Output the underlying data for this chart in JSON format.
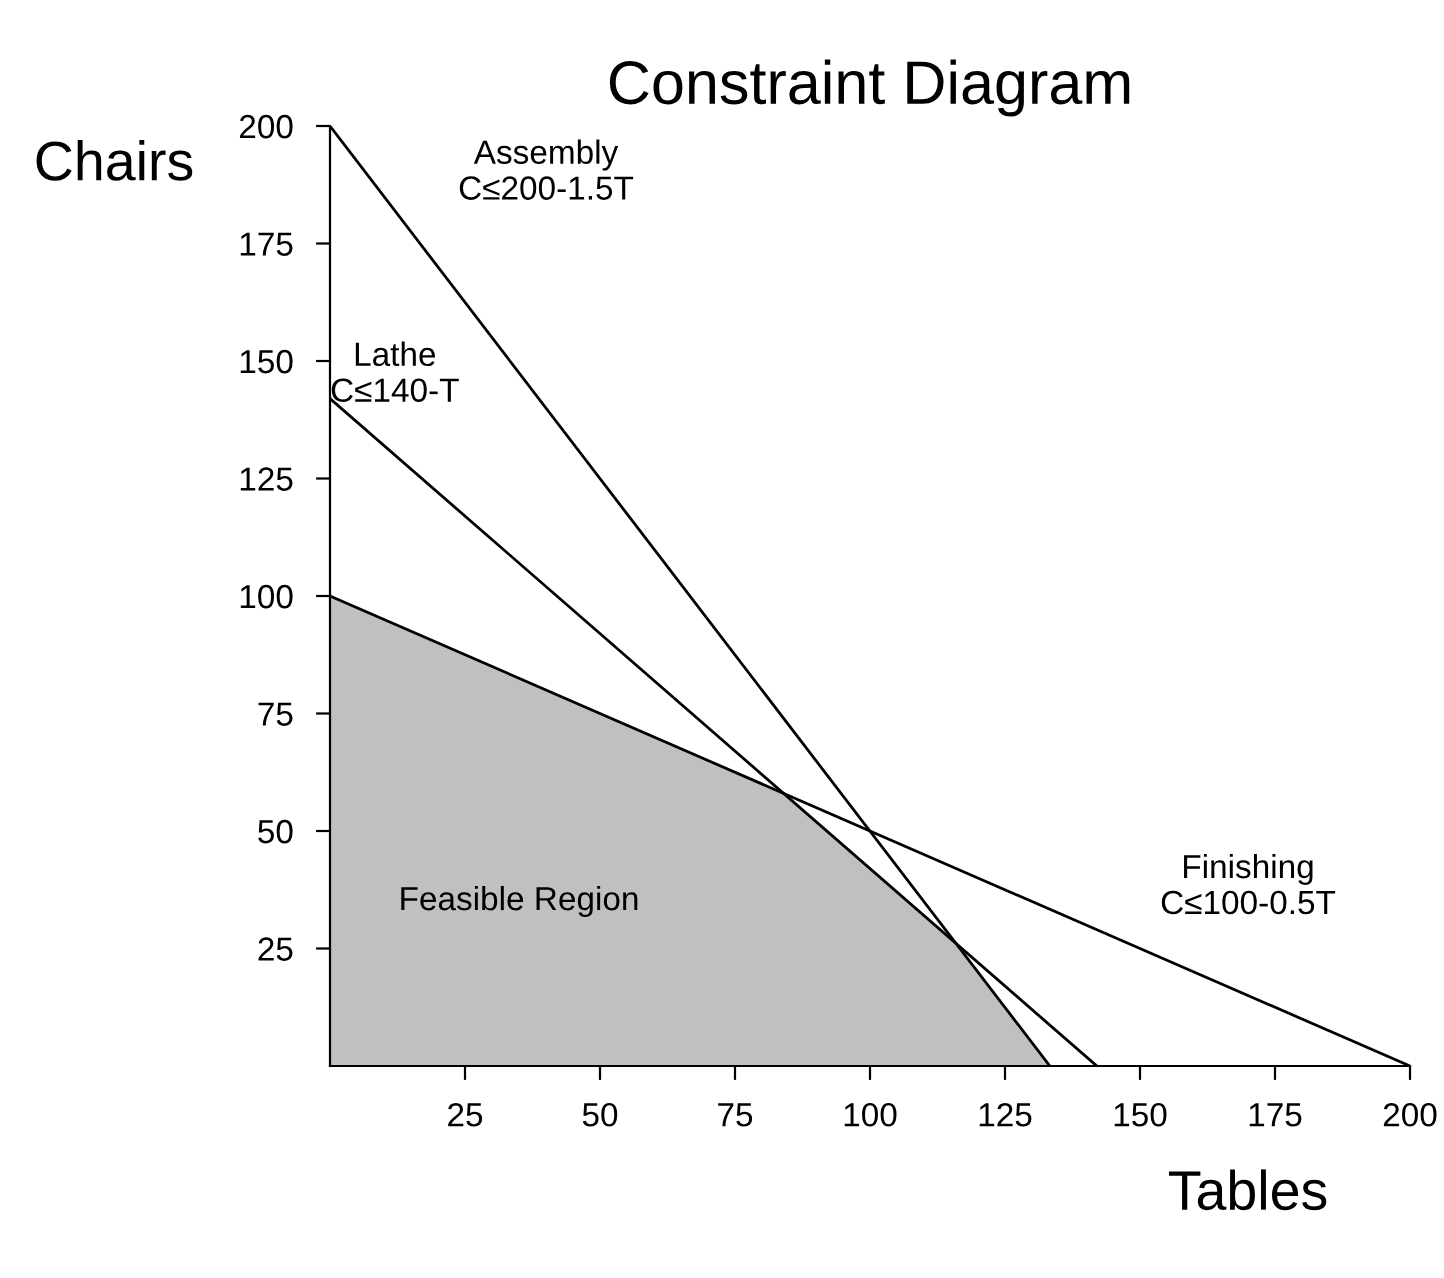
{
  "chart_data": {
    "type": "line",
    "title": "Constraint Diagram",
    "xlabel": "Tables",
    "ylabel": "Chairs",
    "series": [
      {
        "type": "area",
        "name": "Feasible Region",
        "color": "#c0c0c0",
        "x": [
          0,
          0,
          84,
          116,
          133.3
        ],
        "values": [
          0,
          100,
          58,
          26,
          0
        ]
      },
      {
        "name": "Assembly\nC≤200-1.5T",
        "color": "#000000",
        "x": [
          0,
          133.3
        ],
        "values": [
          200,
          0
        ]
      },
      {
        "name": "Lathe\nC≤140-T",
        "color": "#000000",
        "x": [
          0,
          142
        ],
        "values": [
          142,
          0
        ]
      },
      {
        "name": "Finishing\nC≤100-0.5T",
        "color": "#000000",
        "x": [
          0,
          200
        ],
        "values": [
          100,
          0
        ]
      }
    ],
    "xlim": [
      0,
      200
    ],
    "ylim": [
      0,
      200
    ],
    "xticks": [
      25,
      50,
      75,
      100,
      125,
      150,
      175,
      200
    ],
    "yticks": [
      25,
      50,
      75,
      100,
      125,
      150,
      175,
      200
    ],
    "grid": false,
    "legend": false,
    "marker": "none",
    "line_style": "solid"
  }
}
